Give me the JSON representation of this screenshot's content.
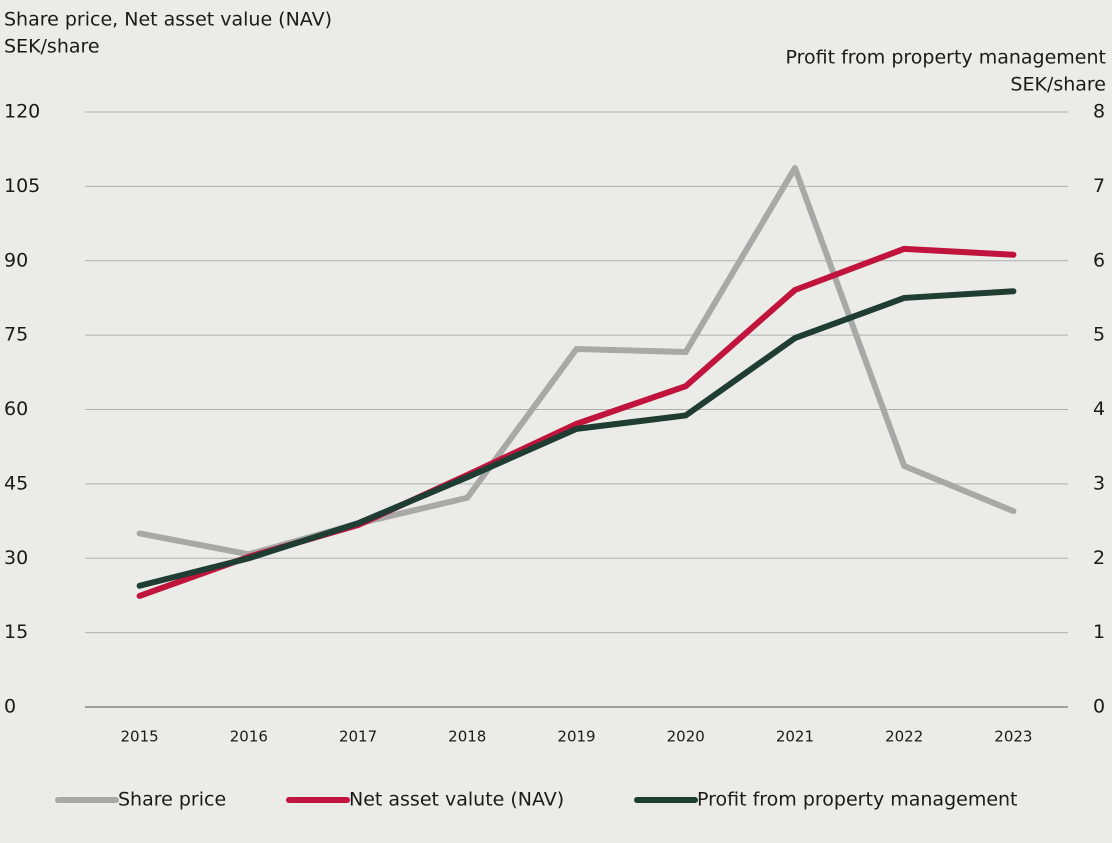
{
  "chart_data": {
    "type": "line",
    "ylabel": [
      "Share price, Net asset value (NAV)",
      "SEK/share"
    ],
    "y2label": [
      "Profit from property management",
      "SEK/share"
    ],
    "categories": [
      "2015",
      "2016",
      "2017",
      "2018",
      "2019",
      "2020",
      "2021",
      "2022",
      "2023"
    ],
    "series": [
      {
        "name": "Share price",
        "color": "#a8a8a6",
        "values": [
          35,
          30.8,
          37,
          42.2,
          72.2,
          71.6,
          108.7,
          48.6,
          39.5
        ]
      },
      {
        "name": "Net asset valute (NAV)",
        "color": "#c0143c",
        "values": [
          22.4,
          30.3,
          36.7,
          46.8,
          57.1,
          64.7,
          84.1,
          92.4,
          91.2
        ]
      },
      {
        "name": "Profit from property management",
        "color": "#1f3d33",
        "axis": "y2",
        "values": [
          1.63,
          2.0,
          2.47,
          3.09,
          3.74,
          3.92,
          4.96,
          5.5,
          5.59
        ]
      }
    ],
    "ylim": [
      0,
      120
    ],
    "yticks": [
      0,
      15,
      30,
      45,
      60,
      75,
      90,
      105,
      120
    ],
    "y2lim": [
      0,
      8
    ],
    "y2ticks": [
      0,
      1,
      2,
      3,
      4,
      5,
      6,
      7,
      8
    ],
    "grid": true,
    "legend": "bottom"
  }
}
